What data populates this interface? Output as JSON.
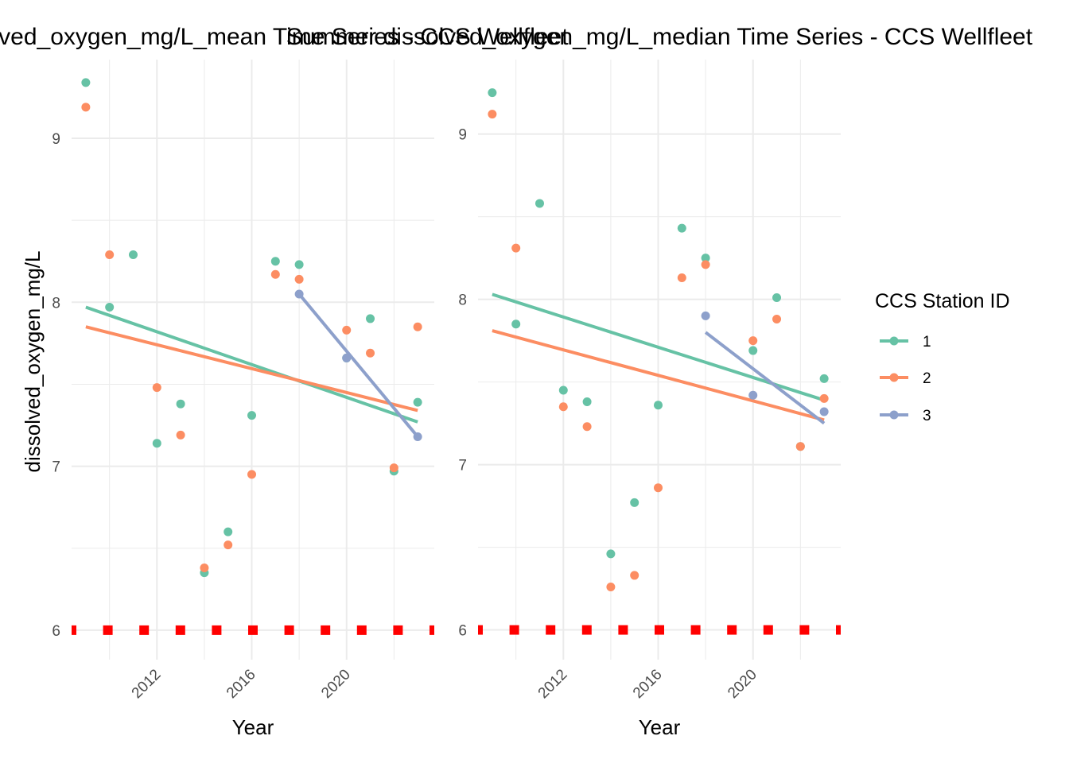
{
  "colors": {
    "1": "#66c2a5",
    "2": "#fc8d62",
    "3": "#8da0cb",
    "marker": "#ff0000",
    "grid": "#ebebeb"
  },
  "legend": {
    "title": "CCS Station ID",
    "placement": "right",
    "items": [
      "1",
      "2",
      "3"
    ]
  },
  "chart_data": [
    {
      "type": "scatter",
      "title": "dissolved_oxygen_mg/L_mean Time Series - CCS Wellfleet",
      "xlabel": "Year",
      "ylabel": "dissolved_oxygen_mg/L",
      "xlim": [
        2008.4,
        2023.7
      ],
      "ylim": [
        5.82,
        9.48
      ],
      "x_ticks": [
        2012,
        2016,
        2020
      ],
      "x_tick_labels": [
        "2012",
        "2016",
        "2020"
      ],
      "y_ticks": [
        6,
        7,
        8,
        9
      ],
      "y_tick_labels": [
        "6",
        "7",
        "8",
        "9"
      ],
      "grid": true,
      "series": [
        {
          "name": "1",
          "points": [
            [
              2009,
              9.34
            ],
            [
              2010,
              7.97
            ],
            [
              2011,
              8.29
            ],
            [
              2012,
              7.14
            ],
            [
              2013,
              7.38
            ],
            [
              2014,
              6.35
            ],
            [
              2015,
              6.6
            ],
            [
              2016,
              7.31
            ],
            [
              2017,
              8.25
            ],
            [
              2018,
              8.23
            ],
            [
              2020,
              7.66
            ],
            [
              2021,
              7.9
            ],
            [
              2022,
              6.97
            ],
            [
              2023,
              7.39
            ]
          ],
          "trend": [
            [
              2009,
              7.97
            ],
            [
              2023,
              7.27
            ]
          ]
        },
        {
          "name": "2",
          "points": [
            [
              2009,
              9.19
            ],
            [
              2010,
              8.29
            ],
            [
              2012,
              7.48
            ],
            [
              2013,
              7.19
            ],
            [
              2014,
              6.38
            ],
            [
              2015,
              6.52
            ],
            [
              2016,
              6.95
            ],
            [
              2017,
              8.17
            ],
            [
              2018,
              8.14
            ],
            [
              2020,
              7.83
            ],
            [
              2021,
              7.69
            ],
            [
              2022,
              6.99
            ],
            [
              2023,
              7.85
            ]
          ],
          "trend": [
            [
              2009,
              7.85
            ],
            [
              2023,
              7.34
            ]
          ]
        },
        {
          "name": "3",
          "points": [
            [
              2018,
              8.05
            ],
            [
              2020,
              7.66
            ],
            [
              2023,
              7.18
            ]
          ],
          "trend": [
            [
              2018,
              8.05
            ],
            [
              2023,
              7.18
            ]
          ]
        }
      ],
      "marker_row": {
        "y": 6,
        "x": [
          2008.4,
          2009.93,
          2011.46,
          2012.99,
          2014.52,
          2016.05,
          2017.58,
          2019.11,
          2020.64,
          2022.17,
          2023.7
        ]
      }
    },
    {
      "type": "scatter",
      "title": "Summer dissolved_oxygen_mg/L_median Time Series - CCS Wellfleet",
      "xlabel": "Year",
      "ylabel": "",
      "xlim": [
        2008.4,
        2023.7
      ],
      "ylim": [
        5.82,
        9.45
      ],
      "x_ticks": [
        2012,
        2016,
        2020
      ],
      "x_tick_labels": [
        "2012",
        "2016",
        "2020"
      ],
      "y_ticks": [
        6,
        7,
        8,
        9
      ],
      "y_tick_labels": [
        "6",
        "7",
        "8",
        "9"
      ],
      "grid": true,
      "series": [
        {
          "name": "1",
          "points": [
            [
              2009,
              9.25
            ],
            [
              2010,
              7.85
            ],
            [
              2011,
              8.58
            ],
            [
              2012,
              7.45
            ],
            [
              2013,
              7.38
            ],
            [
              2014,
              6.46
            ],
            [
              2015,
              6.77
            ],
            [
              2016,
              7.36
            ],
            [
              2017,
              8.43
            ],
            [
              2018,
              8.25
            ],
            [
              2020,
              7.69
            ],
            [
              2021,
              8.01
            ],
            [
              2022,
              7.11
            ],
            [
              2023,
              7.52
            ]
          ],
          "trend": [
            [
              2009,
              8.03
            ],
            [
              2023,
              7.39
            ]
          ]
        },
        {
          "name": "2",
          "points": [
            [
              2009,
              9.12
            ],
            [
              2010,
              8.31
            ],
            [
              2012,
              7.35
            ],
            [
              2013,
              7.23
            ],
            [
              2014,
              6.26
            ],
            [
              2015,
              6.33
            ],
            [
              2016,
              6.86
            ],
            [
              2017,
              8.13
            ],
            [
              2018,
              8.21
            ],
            [
              2020,
              7.75
            ],
            [
              2021,
              7.88
            ],
            [
              2022,
              7.11
            ],
            [
              2023,
              7.4
            ]
          ],
          "trend": [
            [
              2009,
              7.81
            ],
            [
              2023,
              7.27
            ]
          ]
        },
        {
          "name": "3",
          "points": [
            [
              2018,
              7.9
            ],
            [
              2020,
              7.42
            ],
            [
              2023,
              7.32
            ]
          ],
          "trend": [
            [
              2018,
              7.8
            ],
            [
              2023,
              7.25
            ]
          ]
        }
      ],
      "marker_row": {
        "y": 6,
        "x": [
          2008.4,
          2009.93,
          2011.46,
          2012.99,
          2014.52,
          2016.05,
          2017.58,
          2019.11,
          2020.64,
          2022.17,
          2023.7
        ]
      }
    }
  ]
}
